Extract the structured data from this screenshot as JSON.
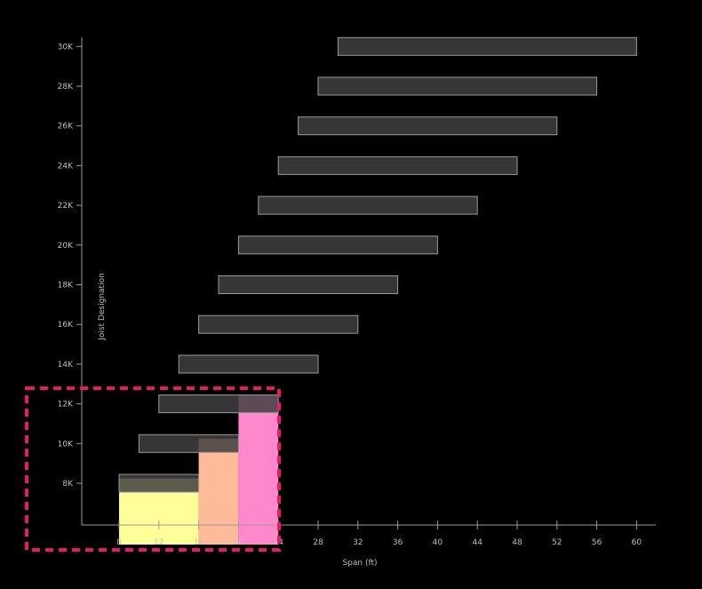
{
  "chart_data": {
    "type": "bar",
    "orientation": "horizontal-range",
    "title": "",
    "xlabel": "Span (ft)",
    "ylabel": "Joist Designation",
    "xlim": [
      4,
      60
    ],
    "x_ticks": [
      8,
      12,
      16,
      20,
      24,
      28,
      32,
      36,
      40,
      44,
      48,
      52,
      56,
      60
    ],
    "y_ticks": [
      "8K",
      "10K",
      "12K",
      "14K",
      "16K",
      "18K",
      "20K",
      "22K",
      "24K",
      "26K",
      "28K",
      "30K"
    ],
    "series": [
      {
        "values": [
          {
            "category": "8K",
            "start": 8,
            "end": 16
          },
          {
            "category": "10K",
            "start": 10,
            "end": 20
          },
          {
            "category": "12K",
            "start": 12,
            "end": 24
          },
          {
            "category": "14K",
            "start": 14,
            "end": 28
          },
          {
            "category": "16K",
            "start": 16,
            "end": 32
          },
          {
            "category": "18K",
            "start": 18,
            "end": 36
          },
          {
            "category": "20K",
            "start": 20,
            "end": 40
          },
          {
            "category": "22K",
            "start": 22,
            "end": 44
          },
          {
            "category": "24K",
            "start": 24,
            "end": 48
          },
          {
            "category": "26K",
            "start": 26,
            "end": 52
          },
          {
            "category": "28K",
            "start": 28,
            "end": 56
          },
          {
            "category": "30K",
            "start": 30,
            "end": 60
          }
        ]
      }
    ],
    "highlight_regions": [
      {
        "x_start": 8,
        "x_end": 16,
        "level": 7.8,
        "color": "#ffff99"
      },
      {
        "x_start": 16,
        "x_end": 20,
        "level": 9.8,
        "color": "#ffbb99"
      },
      {
        "x_start": 20,
        "x_end": 24,
        "level": 12,
        "color": "#ff88cc"
      }
    ],
    "highlight_box_color": "#e8196a",
    "bar_color": "#3f3f3f",
    "grid": false,
    "legend": "none"
  }
}
